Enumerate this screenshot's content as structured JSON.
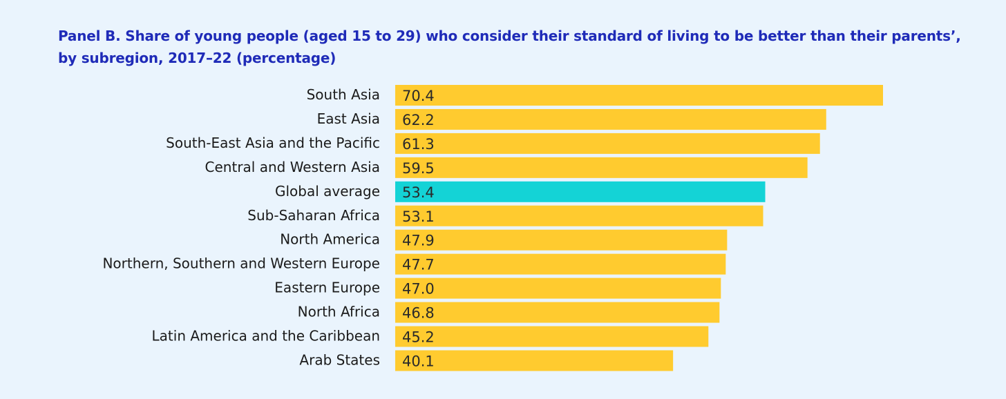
{
  "chart_data": {
    "type": "bar",
    "orientation": "horizontal",
    "title": "Panel B. Share of young people (aged 15 to 29) who consider their standard of living to be better than their parents’, by subregion, 2017–22 (percentage)",
    "categories": [
      "South Asia",
      "East Asia",
      "South-East Asia and the Pacific",
      "Central and Western Asia",
      "Global average",
      "Sub-Saharan Africa",
      "North America",
      "Northern, Southern and Western Europe",
      "Eastern Europe",
      "North Africa",
      "Latin America and the Caribbean",
      "Arab States"
    ],
    "values": [
      70.4,
      62.2,
      61.3,
      59.5,
      53.4,
      53.1,
      47.9,
      47.7,
      47.0,
      46.8,
      45.2,
      40.1
    ],
    "value_labels": [
      "70.4",
      "62.2",
      "61.3",
      "59.5",
      "53.4",
      "53.1",
      "47.9",
      "47.7",
      "47.0",
      "46.8",
      "45.2",
      "40.1"
    ],
    "xlim": [
      0,
      70.4
    ],
    "grid": false,
    "legend": "none",
    "colors": {
      "default_bar": "#ffcb2f",
      "highlight_bar": "#14d3d6",
      "highlight_category": "Global average",
      "title": "#1f2bb8",
      "background": "#eaf4fd"
    }
  }
}
